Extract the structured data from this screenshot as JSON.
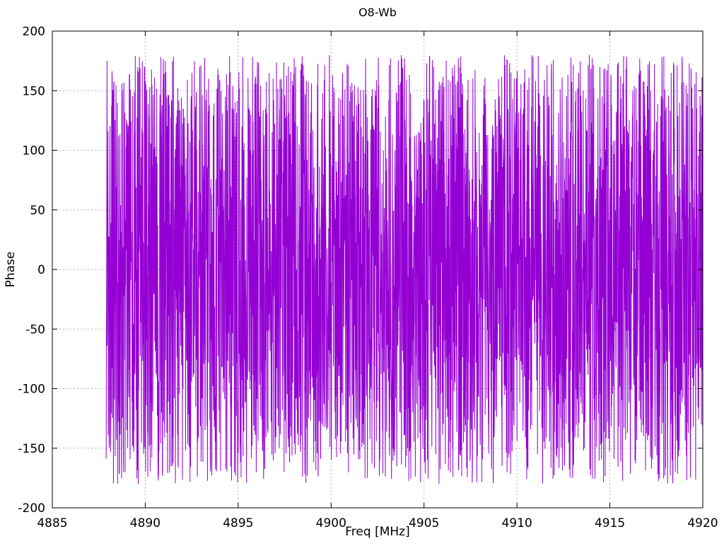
{
  "chart_data": {
    "type": "line",
    "title": "O8-Wb",
    "xlabel": "Freq [MHz]",
    "ylabel": "Phase",
    "xlim": [
      4885,
      4920
    ],
    "ylim": [
      -200,
      200
    ],
    "xticks": [
      4885,
      4890,
      4895,
      4900,
      4905,
      4910,
      4915,
      4920
    ],
    "yticks": [
      -200,
      -150,
      -100,
      -50,
      0,
      50,
      100,
      150,
      200
    ],
    "grid": true,
    "grid_style": "dotted",
    "grid_color": "#9a9a9a",
    "axis_color": "#000000",
    "background_color": "#ffffff",
    "legend": false,
    "series": [
      {
        "name": "phase",
        "color": "#9400d3",
        "style": "lines",
        "description": "wrapped interferometric phase noise, uniformly distributed between -180 and +180 degrees",
        "x_start": 4887.9,
        "x_end": 4920.0,
        "y_min": -180,
        "y_max": 180,
        "points": 3000,
        "seed": 19
      }
    ]
  }
}
